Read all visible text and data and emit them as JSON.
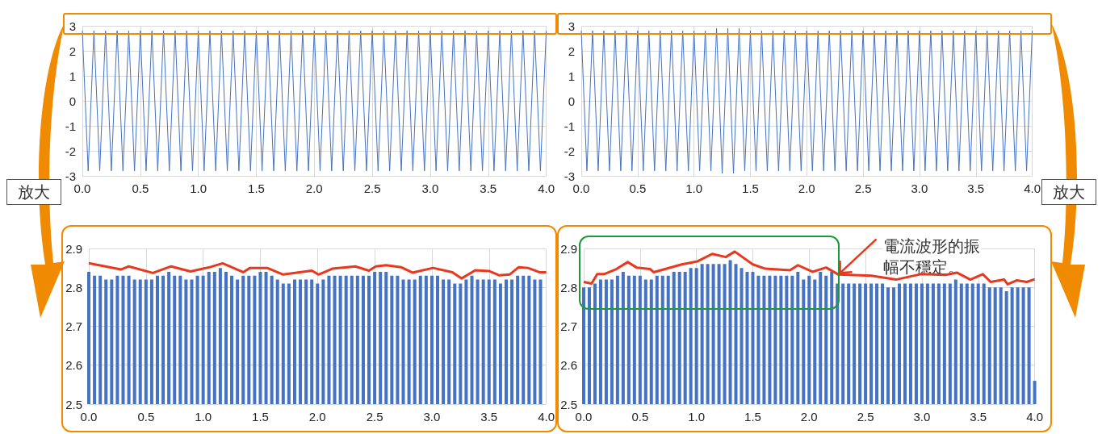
{
  "chart_data": [
    {
      "type": "line",
      "xlim": [
        0,
        4
      ],
      "xticks": [
        {
          "value": 0,
          "label": "0.0"
        },
        {
          "value": 0.5,
          "label": "0.5"
        },
        {
          "value": 1,
          "label": "1.0"
        },
        {
          "value": 1.5,
          "label": "1.5"
        },
        {
          "value": 2,
          "label": "2.0"
        },
        {
          "value": 2.5,
          "label": "2.5"
        },
        {
          "value": 3,
          "label": "3.0"
        },
        {
          "value": 3.5,
          "label": "3.5"
        },
        {
          "value": 4,
          "label": "4.0"
        }
      ],
      "ylim": [
        -3,
        3
      ],
      "yticks": [
        -3,
        -2,
        -1,
        0,
        1,
        2,
        3
      ],
      "grid": true,
      "annotations": [
        "放大"
      ],
      "x": [
        0,
        0.05,
        0.1,
        0.15,
        0.2,
        0.25,
        0.3,
        0.35,
        0.4,
        0.45,
        0.5,
        0.55,
        0.6,
        0.65,
        0.7,
        0.75,
        0.8,
        0.85,
        0.9,
        0.95,
        1,
        1.05,
        1.1,
        1.15,
        1.2,
        1.25,
        1.3,
        1.35,
        1.4,
        1.45,
        1.5,
        1.55,
        1.6,
        1.65,
        1.7,
        1.75,
        1.8,
        1.85,
        1.9,
        1.95,
        2,
        2.05,
        2.1,
        2.15,
        2.2,
        2.25,
        2.3,
        2.35,
        2.4,
        2.45,
        2.5,
        2.55,
        2.6,
        2.65,
        2.7,
        2.75,
        2.8,
        2.85,
        2.9,
        2.95,
        3,
        3.05,
        3.1,
        3.15,
        3.2,
        3.25,
        3.3,
        3.35,
        3.4,
        3.45,
        3.5,
        3.55,
        3.6,
        3.65,
        3.7,
        3.75,
        3.8,
        3.85,
        3.9,
        3.95,
        4
      ],
      "series": [
        {
          "color": "#4472c4",
          "values": [
            2.8,
            -2.8,
            2.8,
            -2.8,
            2.8,
            -2.8,
            2.8,
            -2.8,
            2.8,
            -2.8,
            2.8,
            -2.8,
            2.8,
            -2.8,
            2.8,
            -2.8,
            2.8,
            -2.8,
            2.8,
            -2.8,
            2.8,
            -2.8,
            2.8,
            -2.8,
            2.8,
            -2.8,
            2.8,
            -2.8,
            2.8,
            -2.8,
            2.8,
            -2.8,
            2.8,
            -2.8,
            2.8,
            -2.8,
            2.8,
            -2.8,
            2.8,
            -2.8,
            2.8,
            -2.8,
            2.8,
            -2.8,
            2.8,
            -2.8,
            2.8,
            -2.8,
            2.8,
            -2.8,
            2.8,
            -2.8,
            2.8,
            -2.8,
            2.8,
            -2.8,
            2.8,
            -2.8,
            2.8,
            -2.8,
            2.8,
            -2.8,
            2.8,
            -2.8,
            2.8,
            -2.8,
            2.8,
            -2.8,
            2.8,
            -2.8,
            2.8,
            -2.8,
            2.8,
            -2.8,
            2.8,
            -2.8,
            2.8,
            -2.8,
            2.8,
            -2.8,
            2.8
          ]
        }
      ]
    },
    {
      "type": "line",
      "xlim": [
        0,
        4
      ],
      "xticks": [
        {
          "value": 0,
          "label": "0.0"
        },
        {
          "value": 0.5,
          "label": "0.5"
        },
        {
          "value": 1,
          "label": "1.0"
        },
        {
          "value": 1.5,
          "label": "1.5"
        },
        {
          "value": 2,
          "label": "2.0"
        },
        {
          "value": 2.5,
          "label": "2.5"
        },
        {
          "value": 3,
          "label": "3.0"
        },
        {
          "value": 3.5,
          "label": "3.5"
        },
        {
          "value": 4,
          "label": "4.0"
        }
      ],
      "ylim": [
        -3,
        3
      ],
      "yticks": [
        -3,
        -2,
        -1,
        0,
        1,
        2,
        3
      ],
      "grid": true,
      "annotations": [
        "放大"
      ],
      "x": [
        0,
        0.05,
        0.1,
        0.15,
        0.2,
        0.25,
        0.3,
        0.35,
        0.4,
        0.45,
        0.5,
        0.55,
        0.6,
        0.65,
        0.7,
        0.75,
        0.8,
        0.85,
        0.9,
        0.95,
        1,
        1.05,
        1.1,
        1.15,
        1.2,
        1.25,
        1.3,
        1.35,
        1.4,
        1.45,
        1.5,
        1.55,
        1.6,
        1.65,
        1.7,
        1.75,
        1.8,
        1.85,
        1.9,
        1.95,
        2,
        2.05,
        2.1,
        2.15,
        2.2,
        2.25,
        2.3,
        2.35,
        2.4,
        2.45,
        2.5,
        2.55,
        2.6,
        2.65,
        2.7,
        2.75,
        2.8,
        2.85,
        2.9,
        2.95,
        3,
        3.05,
        3.1,
        3.15,
        3.2,
        3.25,
        3.3,
        3.35,
        3.4,
        3.45,
        3.5,
        3.55,
        3.6,
        3.65,
        3.7,
        3.75,
        3.8,
        3.85,
        3.9,
        3.95,
        4
      ],
      "series": [
        {
          "color": "#4472c4",
          "values": [
            2.8,
            -2.8,
            2.8,
            -2.8,
            2.8,
            -2.8,
            2.8,
            -2.8,
            2.8,
            -2.8,
            2.8,
            -2.8,
            2.8,
            -2.8,
            2.8,
            -2.8,
            2.8,
            -2.8,
            2.8,
            -2.8,
            2.8,
            -2.8,
            2.8,
            -2.8,
            2.9,
            -2.9,
            2.9,
            -2.9,
            2.9,
            -2.8,
            2.8,
            -2.8,
            2.8,
            -2.8,
            2.8,
            -2.8,
            2.8,
            -2.8,
            2.8,
            -2.8,
            2.8,
            -2.8,
            2.8,
            -2.8,
            2.8,
            -2.8,
            2.8,
            -2.8,
            2.8,
            -2.8,
            2.8,
            -2.8,
            2.8,
            -2.8,
            2.8,
            -2.8,
            2.8,
            -2.8,
            2.8,
            -2.8,
            2.8,
            -2.8,
            2.8,
            -2.8,
            2.8,
            -2.8,
            2.8,
            -2.8,
            2.8,
            -2.8,
            2.8,
            -2.8,
            2.8,
            -2.8,
            2.8,
            -2.8,
            2.8,
            -2.8,
            2.8,
            -2.8,
            2.8
          ]
        }
      ]
    },
    {
      "type": "bar",
      "xlim": [
        0,
        4
      ],
      "xticks": [
        {
          "value": 0,
          "label": "0.0"
        },
        {
          "value": 0.5,
          "label": "0.5"
        },
        {
          "value": 1,
          "label": "1.0"
        },
        {
          "value": 1.5,
          "label": "1.5"
        },
        {
          "value": 2,
          "label": "2.0"
        },
        {
          "value": 2.5,
          "label": "2.5"
        },
        {
          "value": 3,
          "label": "3.0"
        },
        {
          "value": 3.5,
          "label": "3.5"
        },
        {
          "value": 4,
          "label": "4.0"
        }
      ],
      "ylim": [
        2.5,
        2.9
      ],
      "yticks": [
        2.5,
        2.6,
        2.7,
        2.8,
        2.9
      ],
      "grid": true,
      "x": [
        0,
        0.05,
        0.1,
        0.15,
        0.2,
        0.25,
        0.3,
        0.35,
        0.4,
        0.45,
        0.5,
        0.55,
        0.6,
        0.65,
        0.7,
        0.75,
        0.8,
        0.85,
        0.9,
        0.95,
        1,
        1.05,
        1.1,
        1.15,
        1.2,
        1.25,
        1.3,
        1.35,
        1.4,
        1.45,
        1.5,
        1.55,
        1.6,
        1.65,
        1.7,
        1.75,
        1.8,
        1.85,
        1.9,
        1.95,
        2,
        2.05,
        2.1,
        2.15,
        2.2,
        2.25,
        2.3,
        2.35,
        2.4,
        2.45,
        2.5,
        2.55,
        2.6,
        2.65,
        2.7,
        2.75,
        2.8,
        2.85,
        2.9,
        2.95,
        3,
        3.05,
        3.1,
        3.15,
        3.2,
        3.25,
        3.3,
        3.35,
        3.4,
        3.45,
        3.5,
        3.55,
        3.6,
        3.65,
        3.7,
        3.75,
        3.8,
        3.85,
        3.9,
        3.95
      ],
      "series": [
        {
          "color": "#4472c4",
          "values": [
            2.84,
            2.83,
            2.83,
            2.82,
            2.82,
            2.83,
            2.83,
            2.83,
            2.82,
            2.82,
            2.82,
            2.82,
            2.83,
            2.83,
            2.84,
            2.83,
            2.83,
            2.82,
            2.82,
            2.83,
            2.83,
            2.84,
            2.84,
            2.85,
            2.84,
            2.83,
            2.82,
            2.83,
            2.83,
            2.83,
            2.84,
            2.84,
            2.83,
            2.82,
            2.81,
            2.81,
            2.82,
            2.82,
            2.82,
            2.82,
            2.81,
            2.82,
            2.83,
            2.83,
            2.83,
            2.83,
            2.83,
            2.83,
            2.83,
            2.83,
            2.84,
            2.84,
            2.84,
            2.83,
            2.83,
            2.82,
            2.82,
            2.82,
            2.83,
            2.83,
            2.83,
            2.83,
            2.82,
            2.82,
            2.81,
            2.81,
            2.82,
            2.83,
            2.82,
            2.82,
            2.82,
            2.82,
            2.81,
            2.82,
            2.82,
            2.83,
            2.83,
            2.83,
            2.82,
            2.82
          ]
        },
        {
          "type": "line",
          "color": "#e8381e",
          "x": [
            0,
            0.28,
            0.35,
            0.56,
            0.72,
            0.89,
            1.06,
            1.17,
            1.35,
            1.41,
            1.56,
            1.7,
            1.95,
            2.01,
            2.13,
            2.33,
            2.45,
            2.51,
            2.6,
            2.73,
            2.83,
            3.01,
            3.18,
            3.26,
            3.38,
            3.5,
            3.59,
            3.68,
            3.76,
            3.84,
            3.94,
            4
          ],
          "values": [
            2.862,
            2.846,
            2.854,
            2.837,
            2.854,
            2.841,
            2.852,
            2.862,
            2.839,
            2.85,
            2.85,
            2.833,
            2.843,
            2.833,
            2.848,
            2.854,
            2.843,
            2.854,
            2.857,
            2.852,
            2.838,
            2.85,
            2.839,
            2.823,
            2.844,
            2.842,
            2.831,
            2.833,
            2.852,
            2.85,
            2.839,
            2.839
          ]
        }
      ]
    },
    {
      "type": "bar",
      "xlim": [
        0,
        4
      ],
      "xticks": [
        {
          "value": 0,
          "label": "0.0"
        },
        {
          "value": 0.5,
          "label": "0.5"
        },
        {
          "value": 1,
          "label": "1.0"
        },
        {
          "value": 1.5,
          "label": "1.5"
        },
        {
          "value": 2,
          "label": "2.0"
        },
        {
          "value": 2.5,
          "label": "2.5"
        },
        {
          "value": 3,
          "label": "3.0"
        },
        {
          "value": 3.5,
          "label": "3.5"
        },
        {
          "value": 4,
          "label": "4.0"
        }
      ],
      "ylim": [
        2.5,
        2.9
      ],
      "yticks": [
        2.5,
        2.6,
        2.7,
        2.8,
        2.9
      ],
      "grid": true,
      "annotations": [
        {
          "text": "電流波形的振幅不穩定。",
          "x": 2.26,
          "y": 2.833
        }
      ],
      "x": [
        0,
        0.05,
        0.1,
        0.15,
        0.2,
        0.25,
        0.3,
        0.35,
        0.4,
        0.45,
        0.5,
        0.55,
        0.6,
        0.65,
        0.7,
        0.75,
        0.8,
        0.85,
        0.9,
        0.95,
        1,
        1.05,
        1.1,
        1.15,
        1.2,
        1.25,
        1.3,
        1.35,
        1.4,
        1.45,
        1.5,
        1.55,
        1.6,
        1.65,
        1.7,
        1.75,
        1.8,
        1.85,
        1.9,
        1.95,
        2,
        2.05,
        2.1,
        2.15,
        2.2,
        2.25,
        2.3,
        2.35,
        2.4,
        2.45,
        2.5,
        2.55,
        2.6,
        2.65,
        2.7,
        2.75,
        2.8,
        2.85,
        2.9,
        2.95,
        3,
        3.05,
        3.1,
        3.15,
        3.2,
        3.25,
        3.3,
        3.35,
        3.4,
        3.45,
        3.5,
        3.55,
        3.6,
        3.65,
        3.7,
        3.75,
        3.8,
        3.85,
        3.9,
        3.95,
        4
      ],
      "series": [
        {
          "color": "#4472c4",
          "values": [
            2.8,
            2.8,
            2.81,
            2.82,
            2.82,
            2.82,
            2.83,
            2.84,
            2.83,
            2.83,
            2.83,
            2.82,
            2.82,
            2.83,
            2.83,
            2.83,
            2.84,
            2.84,
            2.84,
            2.85,
            2.85,
            2.86,
            2.86,
            2.86,
            2.86,
            2.86,
            2.87,
            2.86,
            2.85,
            2.84,
            2.84,
            2.83,
            2.83,
            2.83,
            2.83,
            2.83,
            2.83,
            2.83,
            2.84,
            2.82,
            2.83,
            2.82,
            2.84,
            2.83,
            2.84,
            2.81,
            2.81,
            2.81,
            2.81,
            2.81,
            2.81,
            2.81,
            2.81,
            2.81,
            2.8,
            2.8,
            2.81,
            2.81,
            2.81,
            2.81,
            2.81,
            2.81,
            2.81,
            2.81,
            2.81,
            2.81,
            2.82,
            2.81,
            2.81,
            2.81,
            2.81,
            2.81,
            2.8,
            2.8,
            2.8,
            2.79,
            2.8,
            2.8,
            2.8,
            2.8,
            2.56
          ]
        },
        {
          "type": "line",
          "color": "#e8381e",
          "x": [
            0,
            0.07,
            0.12,
            0.18,
            0.29,
            0.39,
            0.47,
            0.59,
            0.62,
            0.87,
            1.01,
            1.14,
            1.26,
            1.34,
            1.5,
            1.61,
            1.83,
            1.9,
            2.03,
            2.15,
            2.26,
            2.55,
            2.77,
            2.99,
            3.21,
            3.31,
            3.43,
            3.54,
            3.61,
            3.73,
            3.76,
            3.84,
            3.93,
            4
          ],
          "values": [
            2.814,
            2.81,
            2.834,
            2.834,
            2.847,
            2.865,
            2.851,
            2.847,
            2.839,
            2.859,
            2.867,
            2.886,
            2.878,
            2.892,
            2.859,
            2.848,
            2.844,
            2.857,
            2.84,
            2.851,
            2.833,
            2.83,
            2.82,
            2.834,
            2.832,
            2.838,
            2.82,
            2.834,
            2.814,
            2.82,
            2.808,
            2.818,
            2.814,
            2.821
          ]
        }
      ]
    }
  ]
}
